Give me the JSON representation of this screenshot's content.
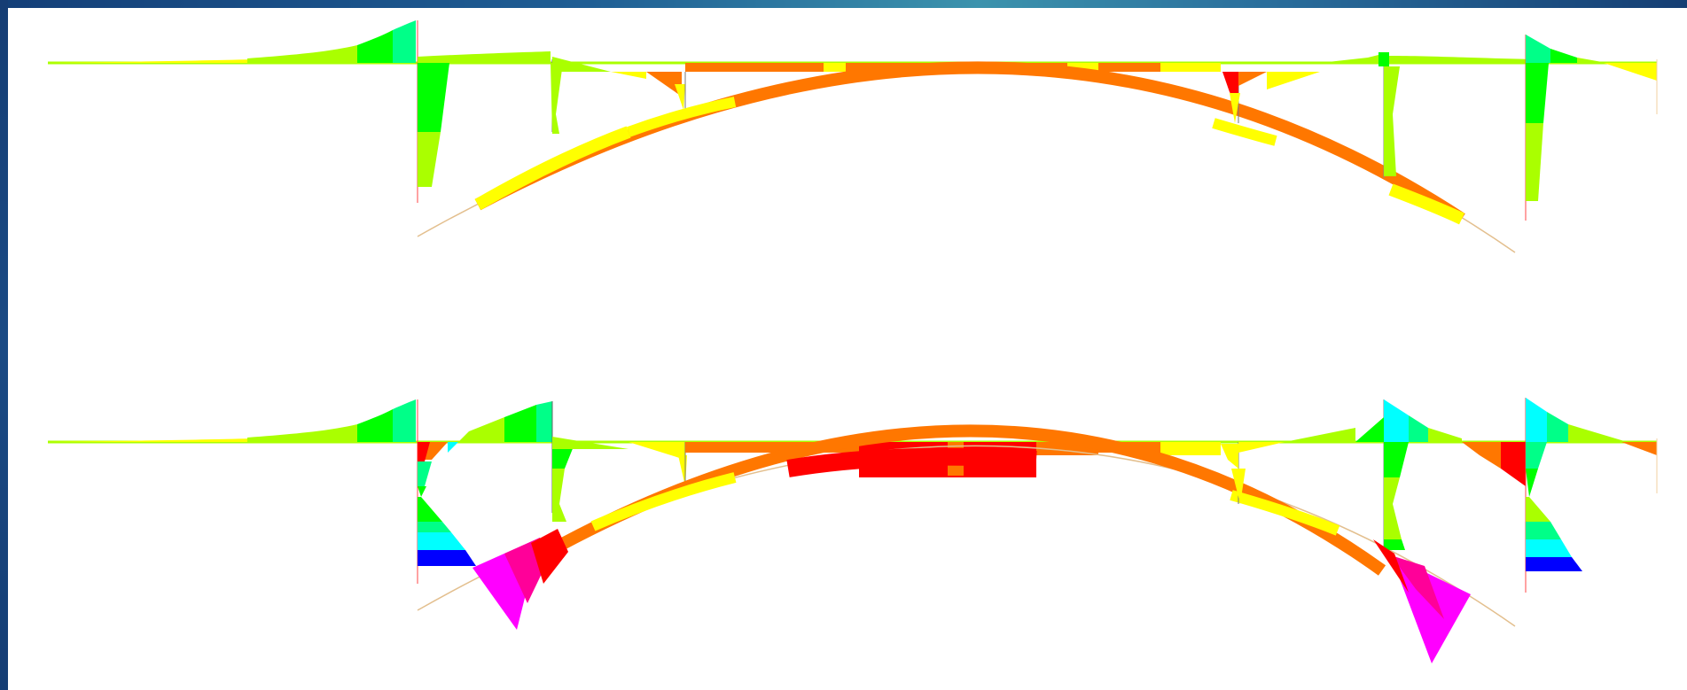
{
  "figure": {
    "colors": {
      "frame": "#153d74",
      "magenta": "#ff00ff",
      "pink": "#ff0099",
      "red": "#ff0000",
      "orange": "#ff7700",
      "yellow": "#ffff00",
      "yellow_green": "#aaff00",
      "green": "#00ff00",
      "spring_green": "#00ff88",
      "cyan": "#00ffff",
      "blue": "#0000ff",
      "tan": "#e3bf8e"
    },
    "panels": [
      {
        "name": "upper-force-diagram"
      },
      {
        "name": "lower-force-diagram"
      }
    ]
  }
}
